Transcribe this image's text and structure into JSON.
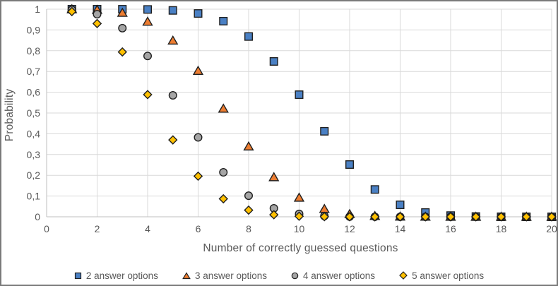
{
  "chart_data": {
    "type": "scatter",
    "title": "",
    "xlabel": "Number of correctly guessed questions",
    "ylabel": "Probability",
    "xlim": [
      0,
      20
    ],
    "ylim": [
      0,
      1
    ],
    "grid": true,
    "legend_position": "bottom",
    "x_ticks": [
      0,
      2,
      4,
      6,
      8,
      10,
      12,
      14,
      16,
      18,
      20
    ],
    "y_tick_values": [
      0,
      0.1,
      0.2,
      0.3,
      0.4,
      0.5,
      0.6,
      0.7,
      0.8,
      0.9,
      1
    ],
    "y_tick_labels": [
      "0",
      "0,1",
      "0,2",
      "0,3",
      "0,4",
      "0,5",
      "0,6",
      "0,7",
      "0,8",
      "0,9",
      "1"
    ],
    "x": [
      1,
      2,
      3,
      4,
      5,
      6,
      7,
      8,
      9,
      10,
      11,
      12,
      13,
      14,
      15,
      16,
      17,
      18,
      19,
      20
    ],
    "series": [
      {
        "name": "2 answer options",
        "marker": "square",
        "fill": "#4A80C4",
        "values": [
          1.0,
          1.0,
          0.9998,
          0.9987,
          0.9941,
          0.9793,
          0.9423,
          0.8684,
          0.7483,
          0.5881,
          0.4119,
          0.2517,
          0.1316,
          0.0577,
          0.0207,
          0.0059,
          0.0013,
          0.0002,
          0.0,
          0.0
        ]
      },
      {
        "name": "3 answer options",
        "marker": "triangle",
        "fill": "#ED7D31",
        "values": [
          0.9997,
          0.9967,
          0.9824,
          0.9396,
          0.8485,
          0.7028,
          0.5207,
          0.3385,
          0.1906,
          0.0919,
          0.0376,
          0.013,
          0.0037,
          0.0009,
          0.0002,
          0.0,
          0.0,
          0.0,
          0.0,
          0.0
        ]
      },
      {
        "name": "4 answer options",
        "marker": "circle",
        "fill": "#A5A5A5",
        "values": [
          0.9968,
          0.9757,
          0.9087,
          0.7748,
          0.5852,
          0.3828,
          0.2142,
          0.1018,
          0.0409,
          0.0139,
          0.0039,
          0.0009,
          0.0002,
          0.0,
          0.0,
          0.0,
          0.0,
          0.0,
          0.0,
          0.0
        ]
      },
      {
        "name": "5 answer options",
        "marker": "diamond",
        "fill": "#FFC000",
        "values": [
          0.9885,
          0.9308,
          0.7939,
          0.5885,
          0.3703,
          0.1957,
          0.0866,
          0.0321,
          0.0099,
          0.0026,
          0.0006,
          0.0001,
          0.0,
          0.0,
          0.0,
          0.0,
          0.0,
          0.0,
          0.0,
          0.0
        ]
      }
    ]
  },
  "colors": {
    "grid": "#D9D9D9",
    "axis": "#BFBFBF",
    "tick_text": "#595959",
    "marker_border": "#1F1F1F",
    "chart_border": "#7A7A7A",
    "background": "#FFFFFF"
  }
}
